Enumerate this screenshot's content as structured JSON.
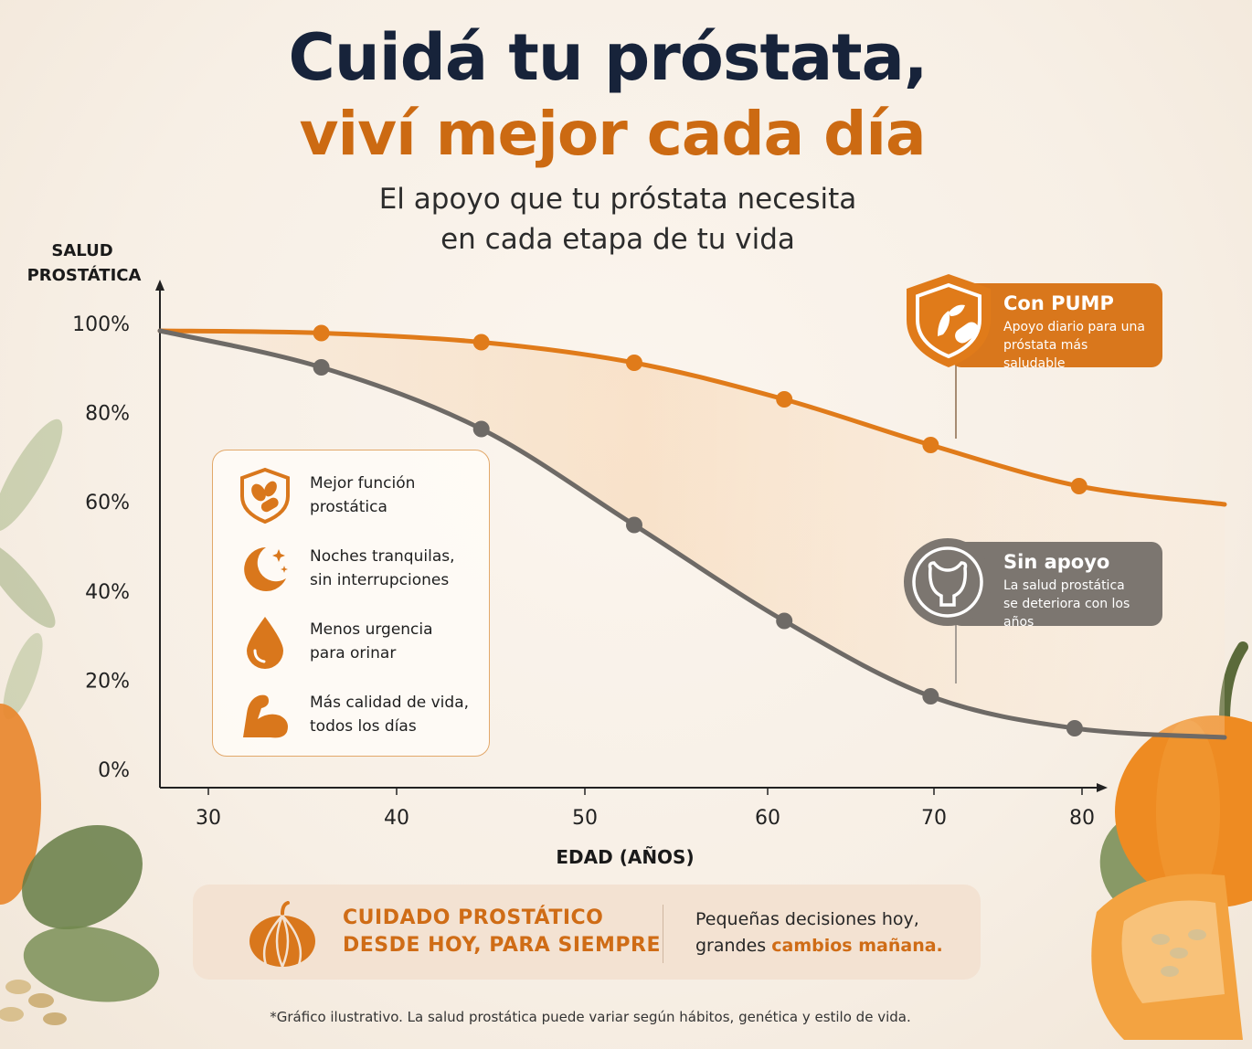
{
  "header": {
    "title_line1": "Cuidá tu próstata,",
    "title_line2": "viví mejor cada día",
    "subtitle_line1": "El apoyo que tu próstata necesita",
    "subtitle_line2": "en cada etapa de tu vida"
  },
  "chart_data": {
    "type": "line",
    "ylabel_line1": "SALUD",
    "ylabel_line2": "PROSTÁTICA",
    "xlabel": "EDAD (AÑOS)",
    "x_ticks": [
      30,
      40,
      50,
      60,
      70,
      80
    ],
    "y_ticks": [
      "0%",
      "20%",
      "40%",
      "60%",
      "80%",
      "100%"
    ],
    "ylim": [
      0,
      100
    ],
    "xlim": [
      27.8,
      81
    ],
    "series": [
      {
        "name": "Con PUMP",
        "color": "#e07b1a",
        "x": [
          27.8,
          36,
          44.5,
          52.7,
          61,
          69.8,
          79.8,
          87
        ],
        "y": [
          100,
          99.5,
          97.5,
          93,
          85,
          75,
          66,
          62
        ],
        "marker_x": [
          36,
          44.5,
          52.7,
          61,
          69.8,
          79.8
        ],
        "marker_y": [
          99.5,
          97.5,
          93,
          85,
          75,
          66
        ]
      },
      {
        "name": "Sin apoyo",
        "color": "#6e6a66",
        "x": [
          27.8,
          36,
          44.5,
          52.7,
          61,
          69.8,
          79.5,
          87
        ],
        "y": [
          100,
          92,
          78.5,
          57.5,
          36.5,
          20,
          13,
          11
        ],
        "marker_x": [
          36,
          44.5,
          52.7,
          61,
          69.8,
          79.5
        ],
        "marker_y": [
          92,
          78.5,
          57.5,
          36.5,
          20,
          13
        ]
      }
    ],
    "grid": false
  },
  "callouts": {
    "pump": {
      "title": "Con PUMP",
      "desc_line1": "Apoyo diario para una",
      "desc_line2": "próstata más saludable",
      "color": "#d9771c",
      "icon": "shield-leaf-pill-icon"
    },
    "sin_apoyo": {
      "title": "Sin apoyo",
      "desc_line1": "La salud prostática",
      "desc_line2": "se deteriora con los años",
      "color": "#7c7670",
      "icon": "bladder-icon"
    }
  },
  "benefits": [
    {
      "line1": "Mejor función",
      "line2": "prostática",
      "icon": "shield-seeds-icon"
    },
    {
      "line1": "Noches tranquilas,",
      "line2": "sin interrupciones",
      "icon": "moon-stars-icon"
    },
    {
      "line1": "Menos urgencia",
      "line2": "para orinar",
      "icon": "drop-icon"
    },
    {
      "line1": "Más calidad de vida,",
      "line2": "todos los días",
      "icon": "flexed-arm-icon"
    }
  ],
  "banner": {
    "left_line1": "CUIDADO PROSTÁTICO",
    "left_line2": "DESDE HOY, PARA SIEMPRE",
    "right_line1": "Pequeñas decisiones hoy,",
    "right_prefix": "grandes ",
    "right_highlight": "cambios mañana.",
    "icon": "pumpkin-icon"
  },
  "footnote": "*Gráfico ilustrativo. La salud prostática puede variar según hábitos, genética y estilo de vida.",
  "colors": {
    "accent": "#d9771c",
    "dark": "#17233a",
    "gray": "#6e6a66"
  }
}
